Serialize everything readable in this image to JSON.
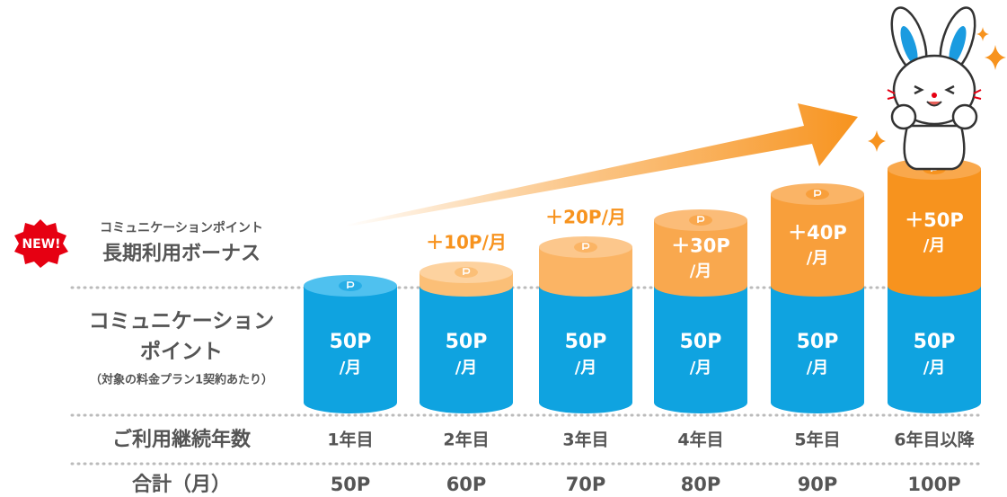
{
  "badge": "NEW!",
  "bonus_label": [
    "コミュニケーションポイント",
    "長期利用ボーナス"
  ],
  "base_label": [
    "コミュニケーション",
    "ポイント",
    "（対象の料金プラン1契約あたり）"
  ],
  "years_label": "ご利用継続年数",
  "total_label": "合計（月）",
  "columns": [
    {
      "year": "1年目",
      "base": [
        "50P",
        "/月"
      ],
      "total": "50P"
    },
    {
      "year": "2年目",
      "base": [
        "50P",
        "/月"
      ],
      "bonus": [
        "＋10P/月"
      ],
      "total": "60P"
    },
    {
      "year": "3年目",
      "base": [
        "50P",
        "/月"
      ],
      "bonus": [
        "＋20P/月"
      ],
      "total": "70P"
    },
    {
      "year": "4年目",
      "base": [
        "50P",
        "/月"
      ],
      "bonus": [
        "＋30P",
        "/月"
      ],
      "total": "80P"
    },
    {
      "year": "5年目",
      "base": [
        "50P",
        "/月"
      ],
      "bonus": [
        "＋40P",
        "/月"
      ],
      "total": "90P"
    },
    {
      "year": "6年目以降",
      "base": [
        "50P",
        "/月"
      ],
      "bonus": [
        "＋50P",
        "/月"
      ],
      "total": "100P"
    }
  ]
}
